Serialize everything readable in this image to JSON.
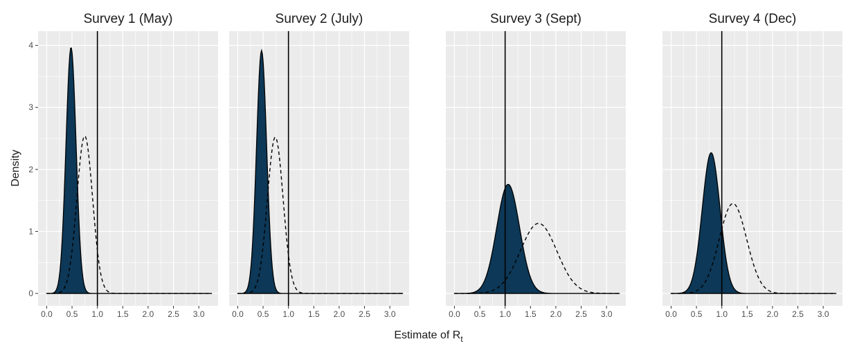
{
  "chart_data": {
    "type": "area",
    "panels": [
      {
        "title": "Survey 1 (May)",
        "filled": {
          "mean": 0.48,
          "sd": 0.1,
          "peak": 3.97
        },
        "dashed": {
          "mean": 0.75,
          "sd": 0.155,
          "peak": 2.54
        }
      },
      {
        "title": "Survey 2 (July)",
        "filled": {
          "mean": 0.47,
          "sd": 0.1,
          "peak": 3.92
        },
        "dashed": {
          "mean": 0.74,
          "sd": 0.155,
          "peak": 2.52
        }
      },
      {
        "title": "Survey 3 (Sept)",
        "filled": {
          "mean": 1.06,
          "sd": 0.225,
          "peak": 1.76
        },
        "dashed": {
          "mean": 1.66,
          "sd": 0.36,
          "peak": 1.13
        }
      },
      {
        "title": "Survey 4 (Dec)",
        "filled": {
          "mean": 0.79,
          "sd": 0.175,
          "peak": 2.27
        },
        "dashed": {
          "mean": 1.22,
          "sd": 0.27,
          "peak": 1.45
        }
      }
    ],
    "reference_line_x": 1.0,
    "xlabel": "Estimate of R",
    "xlabel_subscript": "t",
    "ylabel": "Density",
    "x_ticks": [
      "0.0",
      "0.5",
      "1.0",
      "1.5",
      "2.0",
      "2.5",
      "3.0"
    ],
    "y_ticks": [
      "0",
      "1",
      "2",
      "3",
      "4"
    ],
    "xlim": [
      -0.17,
      3.38
    ],
    "ylim": [
      -0.2,
      4.23
    ],
    "density_range": [
      0.0,
      3.25
    ],
    "grid": true,
    "colors": {
      "panel_background": "#ebebeb",
      "grid_line": "#ffffff",
      "filled_density": "#0d3857",
      "outline": "#000000",
      "strip_background": "#ffffff"
    }
  }
}
